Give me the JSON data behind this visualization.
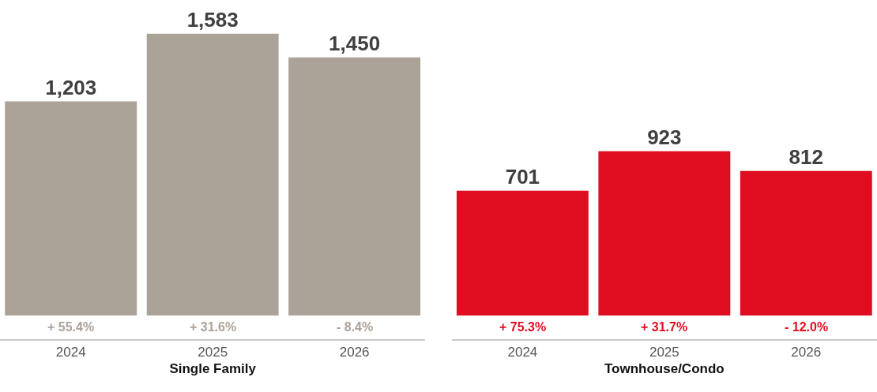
{
  "chart_data": [
    {
      "type": "bar",
      "categories": [
        "2024",
        "2025",
        "2026"
      ],
      "values": [
        1203,
        1583,
        1450
      ],
      "value_labels": [
        "1,203",
        "1,583",
        "1,450"
      ],
      "color": "#aba298",
      "xlabel": "Single Family",
      "annotations": [
        "+ 55.4%",
        "+ 31.6%",
        "- 8.4%"
      ]
    },
    {
      "type": "bar",
      "categories": [
        "2024",
        "2025",
        "2026"
      ],
      "values": [
        701,
        923,
        812
      ],
      "value_labels": [
        "701",
        "923",
        "812"
      ],
      "color": "#e00d21",
      "xlabel": "Townhouse/Condo",
      "annotations": [
        "+ 75.3%",
        "+ 31.7%",
        "- 12.0%"
      ]
    }
  ]
}
